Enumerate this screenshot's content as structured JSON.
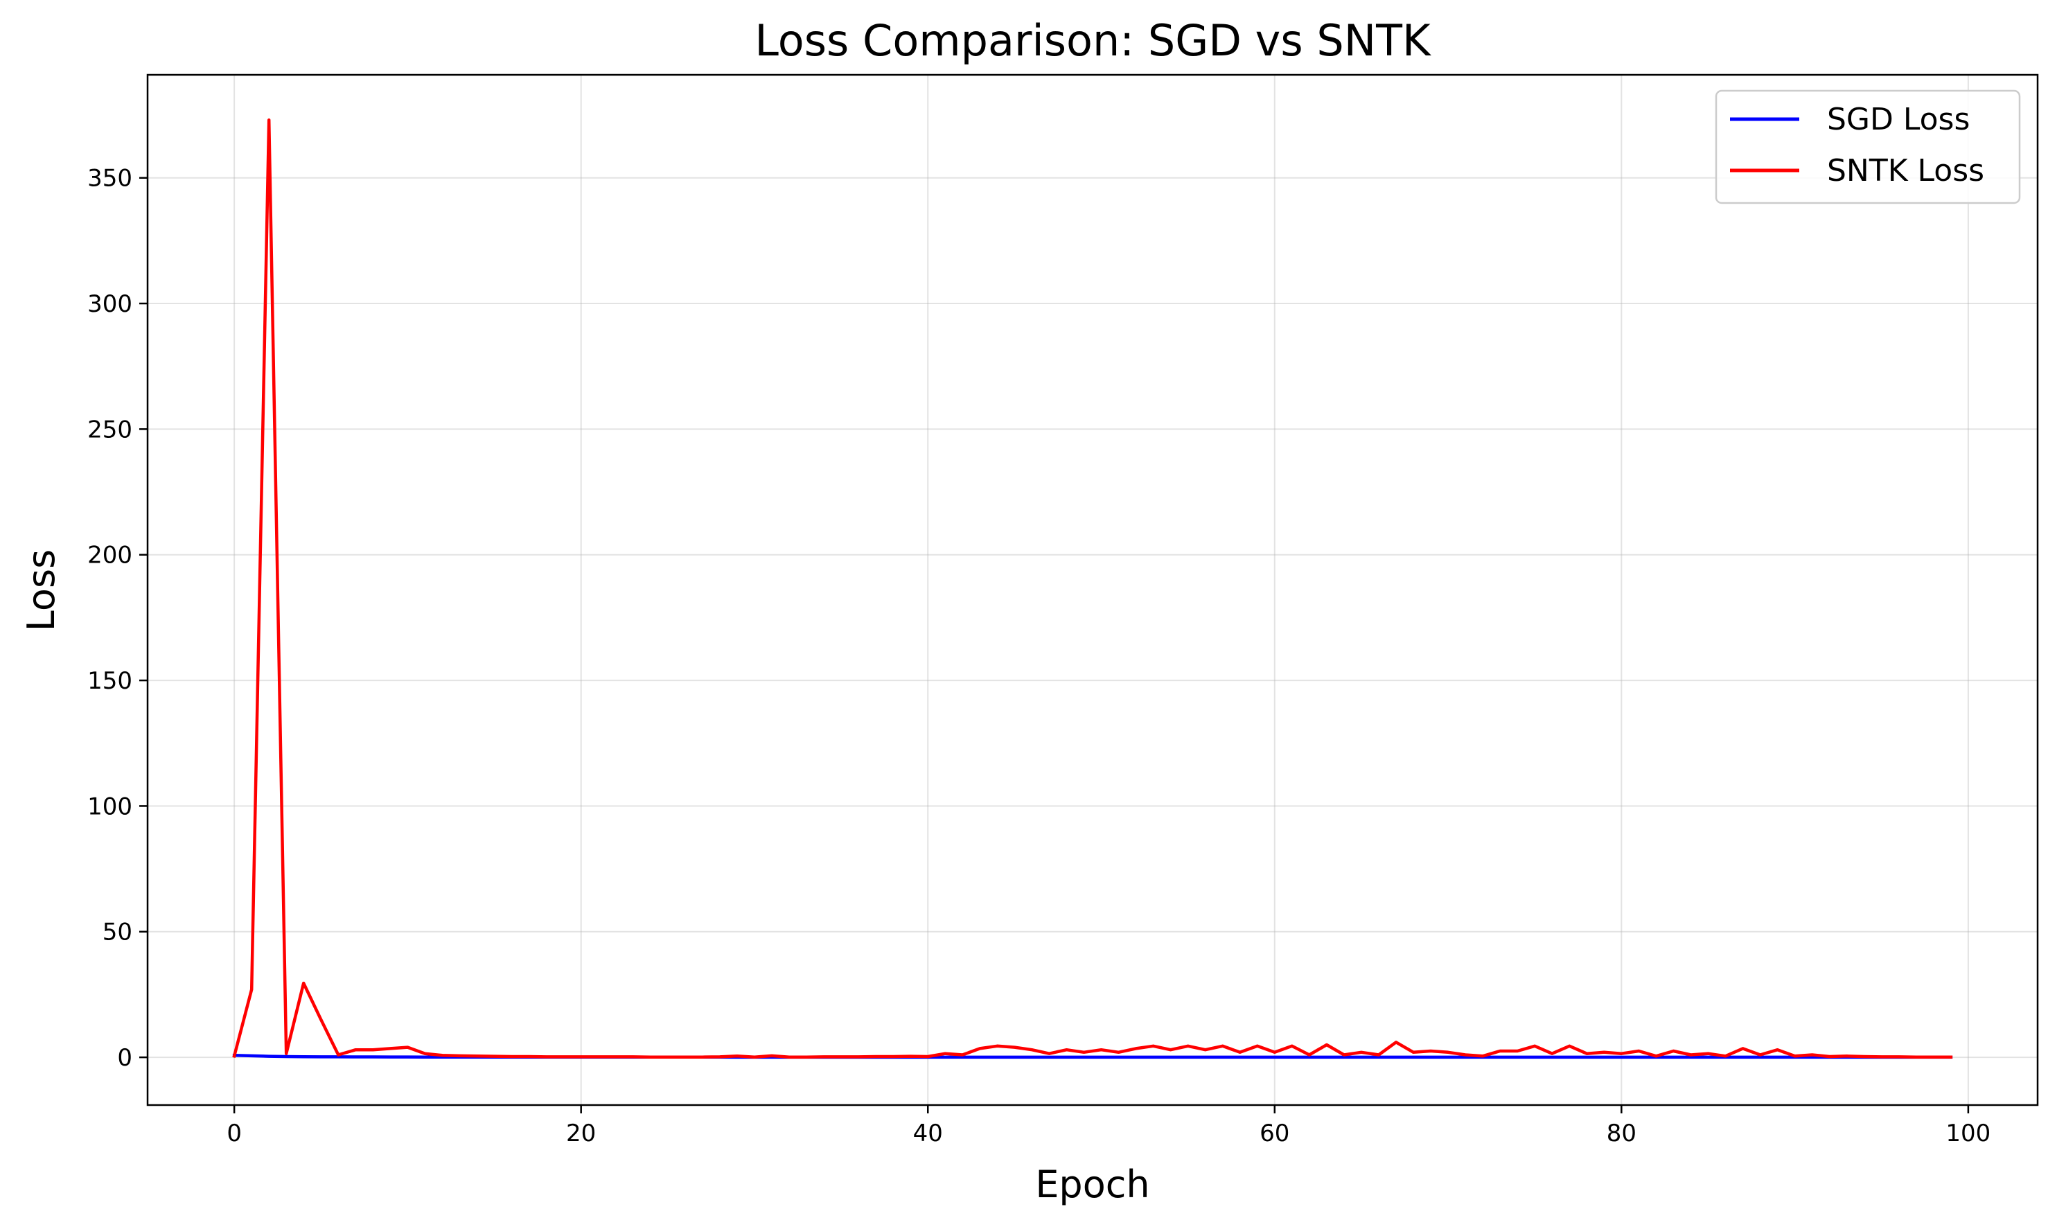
{
  "chart_data": {
    "type": "line",
    "title": "Loss Comparison: SGD vs SNTK",
    "xlabel": "Epoch",
    "ylabel": "Loss",
    "xlim": [
      -5,
      104
    ],
    "ylim": [
      -19,
      391
    ],
    "xticks": [
      0,
      20,
      40,
      60,
      80,
      100
    ],
    "yticks": [
      0,
      50,
      100,
      150,
      200,
      250,
      300,
      350
    ],
    "grid": true,
    "legend_position": "top-right",
    "series": [
      {
        "name": "SGD Loss",
        "color": "#0000ff",
        "x": [
          0,
          1,
          2,
          3,
          4,
          5,
          6,
          7,
          8,
          9,
          10,
          11,
          12,
          13,
          14,
          15,
          16,
          17,
          18,
          19,
          20,
          21,
          22,
          23,
          24,
          25,
          26,
          27,
          28,
          29,
          30,
          31,
          32,
          33,
          34,
          35,
          36,
          37,
          38,
          39,
          40,
          41,
          42,
          43,
          44,
          45,
          46,
          47,
          48,
          49,
          50,
          51,
          52,
          53,
          54,
          55,
          56,
          57,
          58,
          59,
          60,
          61,
          62,
          63,
          64,
          65,
          66,
          67,
          68,
          69,
          70,
          71,
          72,
          73,
          74,
          75,
          76,
          77,
          78,
          79,
          80,
          81,
          82,
          83,
          84,
          85,
          86,
          87,
          88,
          89,
          90,
          91,
          92,
          93,
          94,
          95,
          96,
          97,
          98,
          99
        ],
        "y": [
          0.8,
          0.6,
          0.4,
          0.3,
          0.25,
          0.2,
          0.18,
          0.16,
          0.15,
          0.14,
          0.13,
          0.12,
          0.11,
          0.1,
          0.1,
          0.1,
          0.09,
          0.09,
          0.09,
          0.08,
          0.08,
          0.08,
          0.08,
          0.07,
          0.07,
          0.07,
          0.07,
          0.07,
          0.07,
          0.06,
          0.06,
          0.06,
          0.06,
          0.06,
          0.06,
          0.06,
          0.06,
          0.05,
          0.05,
          0.05,
          0.05,
          0.05,
          0.05,
          0.05,
          0.05,
          0.05,
          0.05,
          0.05,
          0.05,
          0.05,
          0.05,
          0.05,
          0.05,
          0.05,
          0.05,
          0.05,
          0.05,
          0.05,
          0.05,
          0.05,
          0.05,
          0.05,
          0.05,
          0.05,
          0.05,
          0.05,
          0.05,
          0.05,
          0.05,
          0.05,
          0.05,
          0.05,
          0.05,
          0.05,
          0.05,
          0.05,
          0.05,
          0.05,
          0.05,
          0.05,
          0.05,
          0.05,
          0.05,
          0.05,
          0.05,
          0.05,
          0.05,
          0.05,
          0.05,
          0.05,
          0.05,
          0.05,
          0.05,
          0.05,
          0.05,
          0.05,
          0.05,
          0.05,
          0.05,
          0.05
        ]
      },
      {
        "name": "SNTK Loss",
        "color": "#ff0000",
        "x": [
          0,
          1,
          2,
          3,
          4,
          5,
          6,
          7,
          8,
          9,
          10,
          11,
          12,
          13,
          14,
          15,
          16,
          17,
          18,
          19,
          20,
          21,
          22,
          23,
          24,
          25,
          26,
          27,
          28,
          29,
          30,
          31,
          32,
          33,
          34,
          35,
          36,
          37,
          38,
          39,
          40,
          41,
          42,
          43,
          44,
          45,
          46,
          47,
          48,
          49,
          50,
          51,
          52,
          53,
          54,
          55,
          56,
          57,
          58,
          59,
          60,
          61,
          62,
          63,
          64,
          65,
          66,
          67,
          68,
          69,
          70,
          71,
          72,
          73,
          74,
          75,
          76,
          77,
          78,
          79,
          80,
          81,
          82,
          83,
          84,
          85,
          86,
          87,
          88,
          89,
          90,
          91,
          92,
          93,
          94,
          95,
          96,
          97,
          98,
          99
        ],
        "y": [
          0.5,
          27,
          373,
          1.5,
          29.5,
          15,
          1,
          3,
          3,
          3.5,
          4,
          1.5,
          0.8,
          0.6,
          0.5,
          0.4,
          0.3,
          0.3,
          0.2,
          0.2,
          0.2,
          0.2,
          0.2,
          0.2,
          0.1,
          0.1,
          0.1,
          0.1,
          0.2,
          0.5,
          0.1,
          0.6,
          0.1,
          0.1,
          0.2,
          0.2,
          0.2,
          0.3,
          0.3,
          0.4,
          0.3,
          1.5,
          1,
          3.5,
          4.5,
          4,
          3,
          1.5,
          3,
          2,
          3,
          2,
          3.5,
          4.5,
          3,
          4.5,
          3,
          4.5,
          2,
          4.5,
          2,
          4.5,
          1,
          5,
          1,
          2,
          1,
          6,
          2,
          2.5,
          2,
          1,
          0.5,
          2.5,
          2.5,
          4.5,
          1.5,
          4.5,
          1.5,
          2,
          1.5,
          2.5,
          0.5,
          2.5,
          1,
          1.5,
          0.5,
          3.5,
          1,
          3,
          0.5,
          1,
          0.3,
          0.5,
          0.3,
          0.2,
          0.2,
          0.1,
          0.1,
          0.1
        ]
      }
    ]
  }
}
